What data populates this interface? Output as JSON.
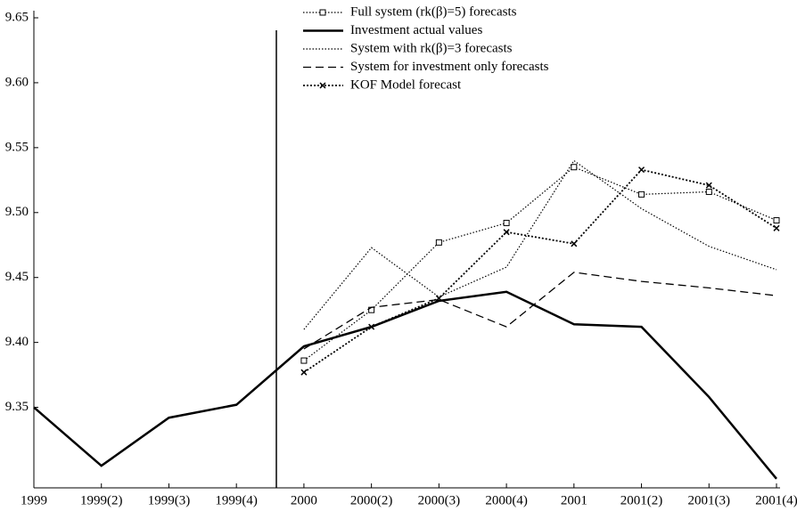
{
  "chart_data": {
    "type": "line",
    "categories": [
      "1999",
      "1999(2)",
      "1999(3)",
      "1999(4)",
      "2000",
      "2000(2)",
      "2000(3)",
      "2000(4)",
      "2001",
      "2001(2)",
      "2001(3)",
      "2001(4)"
    ],
    "ylim": [
      9.288,
      9.65
    ],
    "yticks": [
      {
        "value": 9.35,
        "label": "9.35"
      },
      {
        "value": 9.4,
        "label": "9.40"
      },
      {
        "value": 9.45,
        "label": "9.45"
      },
      {
        "value": 9.5,
        "label": "9.50"
      },
      {
        "value": 9.55,
        "label": "9.55"
      },
      {
        "value": 9.6,
        "label": "9.60"
      },
      {
        "value": 9.65,
        "label": "9.65"
      }
    ],
    "grid": false,
    "legend": "top",
    "series": [
      {
        "name": "Full system (rk(β)=5) forecasts",
        "color": "#000",
        "style": "dotted",
        "marker": "square",
        "values": [
          null,
          null,
          null,
          null,
          9.386,
          9.425,
          9.477,
          9.492,
          9.535,
          9.514,
          9.516,
          9.494
        ]
      },
      {
        "name": "Investment actual values",
        "color": "#000",
        "style": "solid",
        "marker": "none",
        "values": [
          9.35,
          9.305,
          9.342,
          9.352,
          9.397,
          9.412,
          9.432,
          9.439,
          9.414,
          9.412,
          9.358,
          9.295
        ]
      },
      {
        "name": "System with rk(β)=3 forecasts",
        "color": "#000",
        "style": "dotted",
        "marker": "none",
        "values": [
          null,
          null,
          null,
          null,
          9.41,
          9.473,
          9.435,
          9.458,
          9.54,
          9.503,
          9.474,
          9.456
        ]
      },
      {
        "name": "System for investment only forecasts",
        "color": "#000",
        "style": "dashed",
        "marker": "none",
        "values": [
          null,
          null,
          null,
          null,
          9.395,
          9.427,
          9.433,
          9.412,
          9.454,
          9.447,
          9.442,
          9.436
        ]
      },
      {
        "name": "KOF Model forecast",
        "color": "#000",
        "style": "dotted-bold",
        "marker": "cross",
        "values": [
          null,
          null,
          null,
          null,
          9.377,
          9.412,
          9.434,
          9.485,
          9.476,
          9.533,
          9.521,
          9.488
        ]
      }
    ]
  }
}
